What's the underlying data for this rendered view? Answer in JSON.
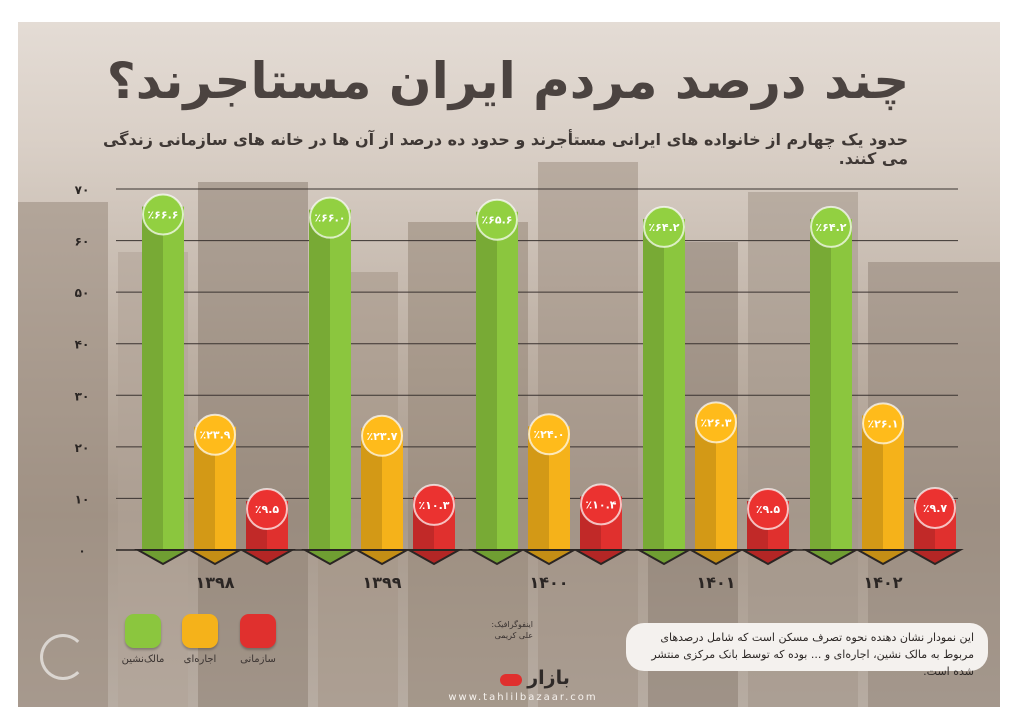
{
  "title": "چند درصد مردم ایران مستاجرند؟",
  "subtitle": "حدود یک چهارم از خانواده های ایرانی مستأجرند و حدود ده درصد از آن ها در خانه های سازمانی زندگی می کنند.",
  "chart_data": {
    "type": "bar",
    "categories": [
      "۱۳۹۸",
      "۱۳۹۹",
      "۱۴۰۰",
      "۱۴۰۱",
      "۱۴۰۲"
    ],
    "y_ticks": [
      "۰",
      "۱۰",
      "۲۰",
      "۳۰",
      "۴۰",
      "۵۰",
      "۶۰",
      "۷۰"
    ],
    "ylim": [
      0,
      70
    ],
    "grid": true,
    "series": [
      {
        "name": "مالک‌نشین",
        "color": "#8bc63e",
        "values": [
          66.6,
          66.0,
          65.6,
          64.2,
          64.2
        ],
        "labels": [
          "٪۶۶.۶",
          "٪۶۶.۰",
          "٪۶۵.۶",
          "٪۶۴.۲",
          "٪۶۴.۲"
        ]
      },
      {
        "name": "اجاره‌ای",
        "color": "#f5b21a",
        "values": [
          23.9,
          23.7,
          24.0,
          26.3,
          26.1
        ],
        "labels": [
          "٪۲۳.۹",
          "٪۲۳.۷",
          "٪۲۴.۰",
          "٪۲۶.۳",
          "٪۲۶.۱"
        ]
      },
      {
        "name": "سازمانی",
        "color": "#e0302e",
        "values": [
          9.5,
          10.3,
          10.4,
          9.5,
          9.7
        ],
        "labels": [
          "٪۹.۵",
          "٪۱۰.۳",
          "٪۱۰.۴",
          "٪۹.۵",
          "٪۹.۷"
        ]
      }
    ]
  },
  "legend": [
    {
      "label": "سازمانی",
      "color": "#e0302e"
    },
    {
      "label": "اجاره‌ای",
      "color": "#f5b21a"
    },
    {
      "label": "مالک‌نشین",
      "color": "#8bc63e"
    }
  ],
  "credit": {
    "line1": "اینفوگرافیک:",
    "line2": "علی کریمی"
  },
  "note": "این نمودار نشان دهنده نحوه تصرف مسکن است که شامل درصدهای مربوط به مالک نشین، اجاره‌ای و ... بوده که توسط بانک مرکزی منتشر شده است.",
  "brand": {
    "name": "بازار",
    "website": "www.tahlilbazaar.com"
  }
}
